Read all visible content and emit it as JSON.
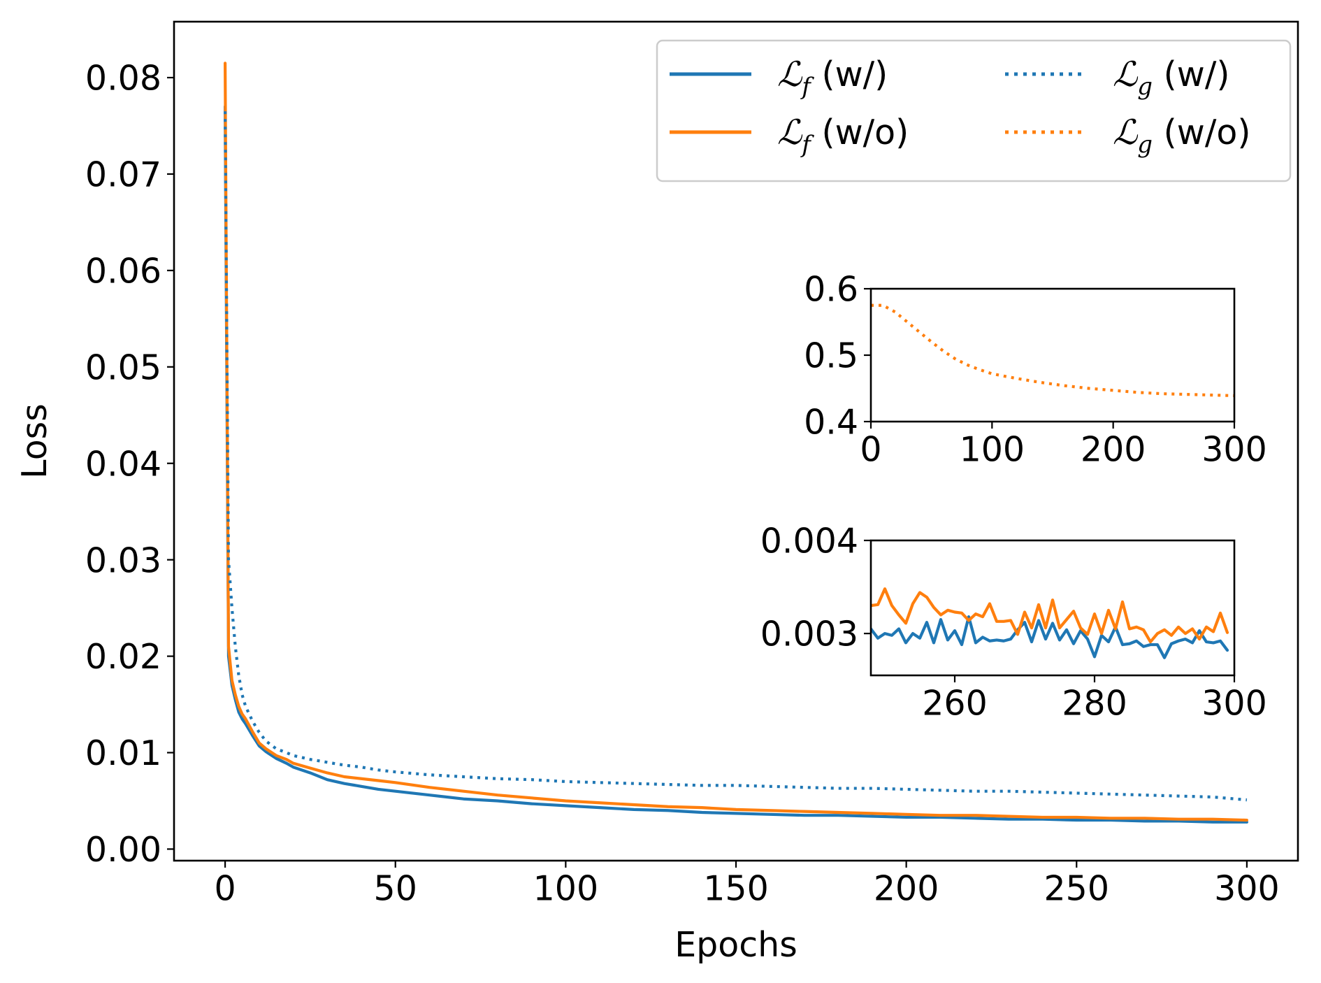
{
  "colors": {
    "blue": "#1f77b4",
    "orange": "#ff7f0e",
    "legend_edge": "#cccccc"
  },
  "legend": {
    "entries": [
      {
        "script": "ℒ",
        "sub": "f",
        "suffix": " (w/)",
        "color": "#1f77b4",
        "style": "solid"
      },
      {
        "script": "ℒ",
        "sub": "g",
        "suffix": " (w/)",
        "color": "#1f77b4",
        "style": "dotted"
      },
      {
        "script": "ℒ",
        "sub": "f",
        "suffix": " (w/o)",
        "color": "#ff7f0e",
        "style": "solid"
      },
      {
        "script": "ℒ",
        "sub": "g",
        "suffix": " (w/o)",
        "color": "#ff7f0e",
        "style": "dotted"
      }
    ]
  },
  "chart_data": [
    {
      "type": "line",
      "title": "",
      "xlabel": "Epochs",
      "ylabel": "Loss",
      "xlim": [
        -15,
        315
      ],
      "ylim": [
        -0.0012,
        0.0858
      ],
      "xticks": [
        0,
        50,
        100,
        150,
        200,
        250,
        300
      ],
      "xtick_labels": [
        "0",
        "50",
        "100",
        "150",
        "200",
        "250",
        "300"
      ],
      "yticks": [
        0.0,
        0.01,
        0.02,
        0.03,
        0.04,
        0.05,
        0.06,
        0.07,
        0.08
      ],
      "ytick_labels": [
        "0.00",
        "0.01",
        "0.02",
        "0.03",
        "0.04",
        "0.05",
        "0.06",
        "0.07",
        "0.08"
      ],
      "legend_position": "top-right",
      "series": [
        {
          "name": "Lf (w/)",
          "color": "#1f77b4",
          "style": "solid",
          "x": [
            0,
            1,
            2,
            3,
            4,
            5,
            6,
            8,
            10,
            12,
            15,
            18,
            20,
            25,
            30,
            35,
            40,
            45,
            50,
            60,
            70,
            80,
            90,
            100,
            110,
            120,
            130,
            140,
            150,
            160,
            170,
            180,
            190,
            200,
            210,
            220,
            230,
            240,
            250,
            260,
            270,
            280,
            290,
            300
          ],
          "values": [
            0.077,
            0.02,
            0.017,
            0.0155,
            0.0142,
            0.0135,
            0.013,
            0.0118,
            0.0107,
            0.0101,
            0.0094,
            0.0089,
            0.0085,
            0.0079,
            0.0072,
            0.0068,
            0.0065,
            0.0062,
            0.006,
            0.0056,
            0.0052,
            0.005,
            0.0047,
            0.0045,
            0.0043,
            0.0041,
            0.004,
            0.0038,
            0.0037,
            0.0036,
            0.0035,
            0.0035,
            0.0034,
            0.0033,
            0.0033,
            0.0032,
            0.0031,
            0.0031,
            0.003,
            0.003,
            0.0029,
            0.0029,
            0.0028,
            0.0028
          ]
        },
        {
          "name": "Lf (w/o)",
          "color": "#ff7f0e",
          "style": "solid",
          "x": [
            0,
            1,
            2,
            3,
            4,
            5,
            6,
            8,
            10,
            12,
            15,
            18,
            20,
            25,
            30,
            35,
            40,
            45,
            50,
            60,
            70,
            80,
            90,
            100,
            110,
            120,
            130,
            140,
            150,
            160,
            170,
            180,
            190,
            200,
            210,
            220,
            230,
            240,
            250,
            260,
            270,
            280,
            290,
            300
          ],
          "values": [
            0.0815,
            0.021,
            0.0175,
            0.016,
            0.0148,
            0.014,
            0.0135,
            0.0122,
            0.011,
            0.0104,
            0.0097,
            0.0093,
            0.0089,
            0.0084,
            0.0079,
            0.0075,
            0.0073,
            0.0071,
            0.0069,
            0.0064,
            0.006,
            0.0056,
            0.0053,
            0.005,
            0.0048,
            0.0046,
            0.0044,
            0.0043,
            0.0041,
            0.004,
            0.0039,
            0.0038,
            0.0037,
            0.0036,
            0.0035,
            0.0035,
            0.0034,
            0.0033,
            0.0033,
            0.0032,
            0.0032,
            0.0031,
            0.0031,
            0.003
          ]
        },
        {
          "name": "Lg (w/)",
          "color": "#1f77b4",
          "style": "dotted",
          "x": [
            0,
            1,
            2,
            3,
            4,
            5,
            6,
            8,
            10,
            12,
            15,
            18,
            20,
            25,
            30,
            35,
            40,
            45,
            50,
            60,
            70,
            80,
            90,
            100,
            110,
            120,
            130,
            140,
            150,
            160,
            170,
            180,
            190,
            200,
            210,
            220,
            230,
            240,
            250,
            260,
            270,
            280,
            290,
            300
          ],
          "values": [
            0.0765,
            0.03,
            0.025,
            0.021,
            0.018,
            0.016,
            0.0148,
            0.0133,
            0.0121,
            0.0112,
            0.0104,
            0.01,
            0.0097,
            0.0093,
            0.009,
            0.0087,
            0.0085,
            0.0082,
            0.008,
            0.0077,
            0.0075,
            0.0073,
            0.0072,
            0.007,
            0.0069,
            0.0068,
            0.0067,
            0.0066,
            0.0066,
            0.0065,
            0.0064,
            0.0063,
            0.0063,
            0.0062,
            0.0061,
            0.006,
            0.006,
            0.0059,
            0.0058,
            0.0057,
            0.0056,
            0.0055,
            0.0054,
            0.0051
          ]
        }
      ]
    },
    {
      "type": "line",
      "title": "",
      "xlabel": "",
      "ylabel": "",
      "xlim": [
        0,
        300
      ],
      "ylim": [
        0.4,
        0.6
      ],
      "xticks": [
        0,
        100,
        200,
        300
      ],
      "xtick_labels": [
        "0",
        "100",
        "200",
        "300"
      ],
      "yticks": [
        0.4,
        0.5,
        0.6
      ],
      "ytick_labels": [
        "0.4",
        "0.5",
        "0.6"
      ],
      "series": [
        {
          "name": "Lg (w/o)",
          "color": "#ff7f0e",
          "style": "dotted",
          "x": [
            0,
            10,
            20,
            30,
            40,
            50,
            60,
            70,
            80,
            90,
            100,
            120,
            140,
            160,
            180,
            200,
            220,
            240,
            260,
            280,
            300
          ],
          "values": [
            0.575,
            0.575,
            0.565,
            0.55,
            0.535,
            0.52,
            0.506,
            0.494,
            0.485,
            0.478,
            0.472,
            0.465,
            0.459,
            0.454,
            0.45,
            0.447,
            0.444,
            0.442,
            0.441,
            0.44,
            0.439
          ]
        }
      ]
    },
    {
      "type": "line",
      "title": "",
      "xlabel": "",
      "ylabel": "",
      "xlim": [
        248,
        300
      ],
      "ylim": [
        0.00255,
        0.004
      ],
      "xticks": [
        260,
        280,
        300
      ],
      "xtick_labels": [
        "260",
        "280",
        "300"
      ],
      "yticks": [
        0.003,
        0.004
      ],
      "ytick_labels": [
        "0.003",
        "0.004"
      ],
      "series": [
        {
          "name": "Lf (w/)",
          "color": "#1f77b4",
          "style": "solid",
          "x": [
            248,
            249,
            250,
            251,
            252,
            253,
            254,
            255,
            256,
            257,
            258,
            259,
            260,
            261,
            262,
            263,
            264,
            265,
            266,
            267,
            268,
            269,
            270,
            271,
            272,
            273,
            274,
            275,
            276,
            277,
            278,
            279,
            280,
            281,
            282,
            283,
            284,
            285,
            286,
            287,
            288,
            289,
            290,
            291,
            292,
            293,
            294,
            295,
            296,
            297,
            298,
            299
          ],
          "values": [
            0.00305,
            0.00295,
            0.003,
            0.00298,
            0.00305,
            0.0029,
            0.003,
            0.00295,
            0.00312,
            0.0029,
            0.00315,
            0.00293,
            0.00303,
            0.00288,
            0.00318,
            0.0029,
            0.00296,
            0.00292,
            0.00293,
            0.00292,
            0.00294,
            0.00304,
            0.00312,
            0.00291,
            0.00314,
            0.00294,
            0.00311,
            0.00293,
            0.00304,
            0.00289,
            0.00303,
            0.00294,
            0.00275,
            0.00298,
            0.00291,
            0.00307,
            0.00288,
            0.00289,
            0.00292,
            0.00286,
            0.00288,
            0.00288,
            0.00274,
            0.00289,
            0.00292,
            0.00294,
            0.0029,
            0.00303,
            0.00291,
            0.0029,
            0.00292,
            0.00282
          ]
        },
        {
          "name": "Lf (w/o)",
          "color": "#ff7f0e",
          "style": "solid",
          "x": [
            248,
            249,
            250,
            251,
            252,
            253,
            254,
            255,
            256,
            257,
            258,
            259,
            260,
            261,
            262,
            263,
            264,
            265,
            266,
            267,
            268,
            269,
            270,
            271,
            272,
            273,
            274,
            275,
            276,
            277,
            278,
            279,
            280,
            281,
            282,
            283,
            284,
            285,
            286,
            287,
            288,
            289,
            290,
            291,
            292,
            293,
            294,
            295,
            296,
            297,
            298,
            299
          ],
          "values": [
            0.0033,
            0.00331,
            0.00348,
            0.0033,
            0.0032,
            0.00311,
            0.00332,
            0.00344,
            0.00339,
            0.00328,
            0.0032,
            0.00325,
            0.00323,
            0.00322,
            0.00314,
            0.00321,
            0.00318,
            0.00332,
            0.00313,
            0.00313,
            0.00314,
            0.00299,
            0.00323,
            0.00306,
            0.00331,
            0.00306,
            0.00336,
            0.00306,
            0.00315,
            0.00324,
            0.00306,
            0.00299,
            0.00321,
            0.003,
            0.00325,
            0.00305,
            0.00334,
            0.00305,
            0.00307,
            0.00304,
            0.00291,
            0.003,
            0.00304,
            0.00298,
            0.00307,
            0.003,
            0.00305,
            0.00294,
            0.00307,
            0.00302,
            0.00322,
            0.00301
          ]
        }
      ]
    }
  ]
}
